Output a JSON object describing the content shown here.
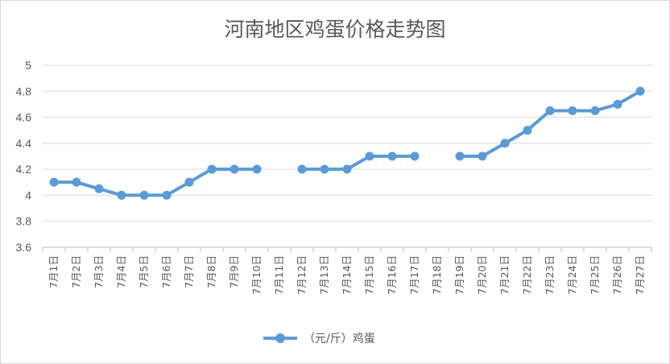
{
  "chart_data": {
    "type": "line",
    "title": "河南地区鸡蛋价格走势图",
    "categories": [
      "7月1日",
      "7月2日",
      "7月3日",
      "7月4日",
      "7月5日",
      "7月6日",
      "7月7日",
      "7月8日",
      "7月9日",
      "7月10日",
      "7月11日",
      "7月12日",
      "7月13日",
      "7月14日",
      "7月15日",
      "7月16日",
      "7月17日",
      "7月18日",
      "7月19日",
      "7月20日",
      "7月21日",
      "7月22日",
      "7月23日",
      "7月24日",
      "7月25日",
      "7月26日",
      "7月27日"
    ],
    "series": [
      {
        "name": "（元/斤）鸡蛋",
        "values": [
          4.1,
          4.1,
          4.05,
          4.0,
          4.0,
          4.0,
          4.1,
          4.2,
          4.2,
          4.2,
          null,
          4.2,
          4.2,
          4.2,
          4.3,
          4.3,
          4.3,
          null,
          4.3,
          4.3,
          4.4,
          4.5,
          4.65,
          4.65,
          4.65,
          4.7,
          4.8
        ],
        "color": "#5b9bd5"
      }
    ],
    "ylim": [
      3.6,
      5
    ],
    "yticks": [
      "3.6",
      "3.8",
      "4",
      "4.2",
      "4.4",
      "4.6",
      "4.8",
      "5"
    ],
    "grid": true,
    "legend_position": "bottom"
  }
}
